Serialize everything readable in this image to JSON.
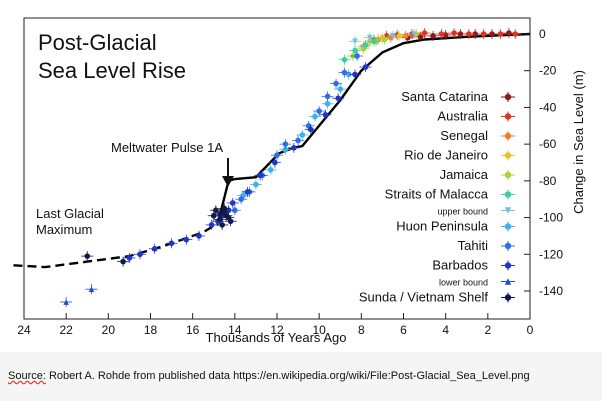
{
  "chart_data": {
    "type": "scatter",
    "title": "Post-Glacial Sea Level Rise",
    "title_lines": [
      "Post-Glacial",
      "Sea Level Rise"
    ],
    "xlabel": "Thousands of Years Ago",
    "ylabel": "Change in Sea Level (m)",
    "xlim": [
      24,
      0
    ],
    "ylim": [
      -150,
      5
    ],
    "xticks": [
      "24",
      "22",
      "20",
      "18",
      "16",
      "14",
      "12",
      "10",
      "8",
      "6",
      "4",
      "2",
      "0"
    ],
    "yticks": [
      "0",
      "-20",
      "-40",
      "-60",
      "-80",
      "-100",
      "-120",
      "-140"
    ],
    "grid": false,
    "legend_position": "right",
    "annotations": [
      {
        "id": "meltwater",
        "text": "Meltwater Pulse 1A",
        "x": 14.4,
        "y": -82
      },
      {
        "id": "lgm",
        "text_lines": [
          "Last Glacial",
          "Maximum"
        ],
        "x": 22.5,
        "y": -110
      }
    ],
    "trend_solid": [
      [
        14.8,
        -103
      ],
      [
        14.3,
        -80
      ],
      [
        14.0,
        -79
      ],
      [
        13.0,
        -78
      ],
      [
        11.9,
        -65
      ],
      [
        11.2,
        -62
      ],
      [
        10.8,
        -61
      ],
      [
        9.0,
        -36
      ],
      [
        8.0,
        -20
      ],
      [
        7.0,
        -10
      ],
      [
        6.0,
        -5
      ],
      [
        5.0,
        -3
      ],
      [
        3.0,
        -1.5
      ],
      [
        1.0,
        -0.5
      ],
      [
        0,
        0
      ]
    ],
    "trend_dashed": [
      [
        24.5,
        -126
      ],
      [
        23,
        -127
      ],
      [
        21,
        -124
      ],
      [
        19,
        -121
      ],
      [
        17.5,
        -116
      ],
      [
        16.5,
        -112
      ],
      [
        15.5,
        -108
      ],
      [
        14.8,
        -103
      ]
    ],
    "series": [
      {
        "name": "Santa Catarina",
        "color": "#8b1a1a",
        "marker": "circle",
        "points": [
          [
            5.8,
            -2
          ],
          [
            5.2,
            -1.5
          ],
          [
            4.6,
            -1
          ],
          [
            4.0,
            -0.5
          ],
          [
            3.3,
            0
          ],
          [
            2.6,
            0
          ],
          [
            1.8,
            0
          ],
          [
            1.0,
            0.5
          ]
        ]
      },
      {
        "name": "Australia",
        "color": "#e0321e",
        "marker": "circle",
        "points": [
          [
            7.4,
            -3
          ],
          [
            6.8,
            -1
          ],
          [
            6.3,
            -0.5
          ],
          [
            5.6,
            0
          ],
          [
            5.0,
            0.5
          ],
          [
            4.2,
            0
          ],
          [
            3.6,
            0.5
          ],
          [
            2.9,
            0
          ],
          [
            2.2,
            0
          ],
          [
            1.4,
            0
          ],
          [
            0.7,
            0
          ]
        ]
      },
      {
        "name": "Senegal",
        "color": "#f07d2a",
        "marker": "circle",
        "points": [
          [
            7.9,
            -7
          ],
          [
            7.2,
            -3
          ],
          [
            6.6,
            -2
          ],
          [
            5.9,
            -1
          ]
        ]
      },
      {
        "name": "Rio de Janeiro",
        "color": "#e8c42a",
        "marker": "circle",
        "points": [
          [
            7.6,
            -4
          ],
          [
            7.0,
            -2
          ],
          [
            6.2,
            -1
          ],
          [
            5.4,
            0
          ]
        ]
      },
      {
        "name": "Jamaica",
        "color": "#a8d43a",
        "marker": "circle",
        "points": [
          [
            8.4,
            -12
          ],
          [
            7.9,
            -8
          ],
          [
            7.3,
            -4
          ],
          [
            6.9,
            -3
          ]
        ]
      },
      {
        "name": "Straits of Malacca",
        "color": "#36d1a0",
        "marker": "circle",
        "points": [
          [
            8.8,
            -14
          ],
          [
            8.3,
            -9
          ],
          [
            7.8,
            -6
          ],
          [
            7.4,
            -4
          ]
        ]
      },
      {
        "name": "upper bound",
        "color": "#6ec2d8",
        "marker": "triangle-down",
        "points": [
          [
            8.3,
            -4
          ],
          [
            7.6,
            -2
          ],
          [
            6.5,
            -1
          ],
          [
            5.5,
            0
          ]
        ]
      },
      {
        "name": "Huon Peninsula",
        "color": "#3ab4e8",
        "marker": "circle",
        "points": [
          [
            13.6,
            -88
          ],
          [
            13.0,
            -82
          ],
          [
            12.3,
            -74
          ],
          [
            11.6,
            -63
          ],
          [
            10.8,
            -55
          ],
          [
            10.2,
            -45
          ],
          [
            9.6,
            -38
          ],
          [
            9.0,
            -30
          ],
          [
            8.6,
            -22
          ]
        ]
      },
      {
        "name": "Tahiti",
        "color": "#2f6ee8",
        "marker": "circle",
        "points": [
          [
            14.0,
            -96
          ],
          [
            13.7,
            -90
          ],
          [
            13.3,
            -86
          ],
          [
            12.7,
            -77
          ],
          [
            12.0,
            -66
          ],
          [
            11.6,
            -60
          ],
          [
            11.0,
            -58
          ],
          [
            10.5,
            -50
          ],
          [
            10.0,
            -42
          ],
          [
            9.6,
            -34
          ],
          [
            9.2,
            -27
          ],
          [
            8.8,
            -21
          ],
          [
            8.2,
            -12
          ]
        ]
      },
      {
        "name": "Barbados",
        "color": "#1f36c8",
        "marker": "circle",
        "points": [
          [
            19.0,
            -122
          ],
          [
            18.5,
            -120
          ],
          [
            17.8,
            -117
          ],
          [
            17.0,
            -114
          ],
          [
            16.3,
            -112
          ],
          [
            15.7,
            -110
          ],
          [
            15.1,
            -104
          ],
          [
            14.8,
            -102
          ],
          [
            14.6,
            -99
          ],
          [
            14.3,
            -96
          ],
          [
            14.1,
            -92
          ],
          [
            13.4,
            -86
          ],
          [
            12.8,
            -77
          ],
          [
            12.1,
            -70
          ],
          [
            11.2,
            -62
          ],
          [
            10.4,
            -52
          ],
          [
            9.7,
            -44
          ],
          [
            9.1,
            -35
          ],
          [
            8.3,
            -22
          ],
          [
            7.8,
            -18
          ]
        ]
      },
      {
        "name": "lower bound",
        "color": "#1a4fd0",
        "marker": "triangle-up",
        "points": [
          [
            22.0,
            -146
          ],
          [
            20.8,
            -139
          ]
        ]
      },
      {
        "name": "Sunda / Vietnam Shelf",
        "color": "#111a4a",
        "marker": "circle",
        "points": [
          [
            21.0,
            -121
          ],
          [
            19.3,
            -124
          ],
          [
            15.0,
            -99
          ],
          [
            14.7,
            -101
          ],
          [
            14.5,
            -97
          ],
          [
            14.6,
            -104
          ],
          [
            14.9,
            -96
          ],
          [
            14.3,
            -100
          ],
          [
            14.5,
            -95
          ],
          [
            14.7,
            -98
          ],
          [
            14.2,
            -102
          ],
          [
            14.4,
            -99
          ]
        ]
      }
    ]
  },
  "source": {
    "prefix": "Source:",
    "author": "Robert A. Rohde",
    "middle": " from published data ",
    "url": "https://en.wikipedia.org/wiki/File:Post-Glacial_Sea_Level.png"
  }
}
